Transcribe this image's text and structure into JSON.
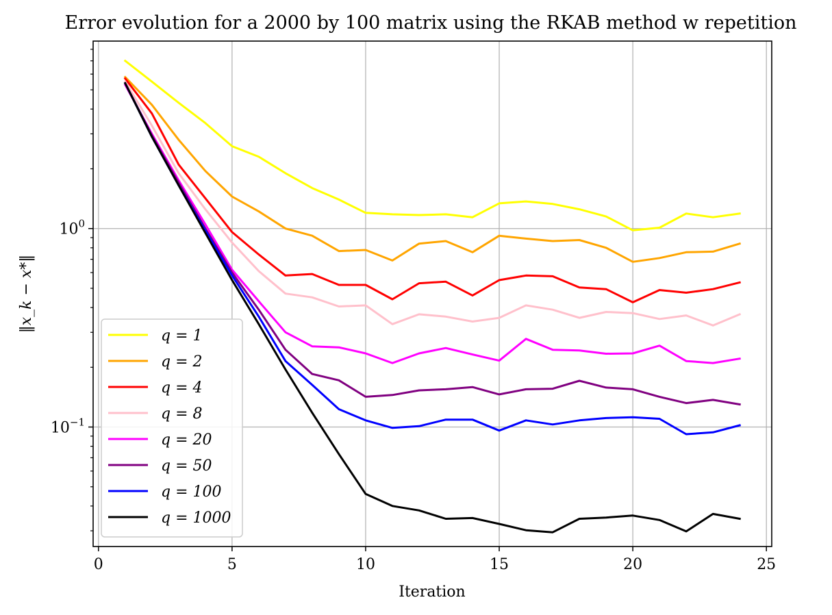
{
  "chart_data": {
    "type": "line",
    "title": "Error evolution for a 2000 by 100 matrix using the RKAB method w repetition",
    "xlabel": "Iteration",
    "ylabel": "‖x_k − x*‖",
    "xlim": [
      -0.2,
      25.2
    ],
    "ylim": [
      0.025,
      8.8
    ],
    "yscale": "log",
    "grid": true,
    "legend_position": "lower-left",
    "x_ticks": [
      0,
      5,
      10,
      15,
      20,
      25
    ],
    "x_tick_labels": [
      "0",
      "5",
      "10",
      "15",
      "20",
      "25"
    ],
    "y_major_ticks": [
      0.1,
      1
    ],
    "y_tick_labels": [
      {
        "base": "10",
        "exp": "−1"
      },
      {
        "base": "10",
        "exp": "0"
      }
    ],
    "x": [
      1,
      2,
      3,
      4,
      5,
      6,
      7,
      8,
      9,
      10,
      11,
      12,
      13,
      14,
      15,
      16,
      17,
      18,
      19,
      20,
      21,
      22,
      23,
      24
    ],
    "series": [
      {
        "name": "q = 1",
        "q": "1",
        "color": "#ffff00",
        "values": [
          7.0,
          5.5,
          4.3,
          3.4,
          2.6,
          2.3,
          1.9,
          1.6,
          1.4,
          1.2,
          1.18,
          1.17,
          1.18,
          1.14,
          1.34,
          1.37,
          1.33,
          1.25,
          1.15,
          0.98,
          1.01,
          1.19,
          1.14,
          1.19
        ]
      },
      {
        "name": "q = 2",
        "q": "2",
        "color": "#ffa500",
        "values": [
          5.8,
          4.2,
          2.8,
          1.95,
          1.45,
          1.22,
          1.0,
          0.92,
          0.77,
          0.78,
          0.69,
          0.84,
          0.865,
          0.76,
          0.92,
          0.89,
          0.865,
          0.875,
          0.8,
          0.68,
          0.71,
          0.76,
          0.765,
          0.84
        ]
      },
      {
        "name": "q = 4",
        "q": "4",
        "color": "#ff0000",
        "values": [
          5.7,
          3.8,
          2.1,
          1.42,
          0.96,
          0.74,
          0.58,
          0.59,
          0.52,
          0.52,
          0.44,
          0.53,
          0.54,
          0.46,
          0.55,
          0.58,
          0.575,
          0.505,
          0.495,
          0.425,
          0.49,
          0.475,
          0.495,
          0.535
        ]
      },
      {
        "name": "q = 8",
        "q": "8",
        "color": "#ffc0cb",
        "values": [
          5.5,
          3.3,
          1.9,
          1.25,
          0.85,
          0.61,
          0.47,
          0.45,
          0.405,
          0.41,
          0.33,
          0.37,
          0.36,
          0.34,
          0.355,
          0.41,
          0.39,
          0.355,
          0.38,
          0.375,
          0.35,
          0.365,
          0.325,
          0.37
        ]
      },
      {
        "name": "q = 20",
        "q": "20",
        "color": "#ff00ff",
        "values": [
          5.3,
          3.0,
          1.75,
          1.05,
          0.62,
          0.43,
          0.3,
          0.255,
          0.252,
          0.235,
          0.21,
          0.235,
          0.25,
          0.232,
          0.216,
          0.278,
          0.245,
          0.243,
          0.234,
          0.235,
          0.257,
          0.215,
          0.21,
          0.221
        ]
      },
      {
        "name": "q = 50",
        "q": "50",
        "color": "#800080",
        "values": [
          5.4,
          2.95,
          1.7,
          1.0,
          0.6,
          0.39,
          0.245,
          0.185,
          0.172,
          0.142,
          0.145,
          0.153,
          0.155,
          0.159,
          0.146,
          0.155,
          0.156,
          0.171,
          0.158,
          0.155,
          0.142,
          0.132,
          0.137,
          0.13
        ]
      },
      {
        "name": "q = 100",
        "q": "100",
        "color": "#0000ff",
        "values": [
          5.4,
          2.9,
          1.65,
          0.98,
          0.58,
          0.36,
          0.215,
          0.163,
          0.123,
          0.108,
          0.099,
          0.101,
          0.109,
          0.109,
          0.096,
          0.108,
          0.103,
          0.108,
          0.111,
          0.112,
          0.11,
          0.092,
          0.094,
          0.102
        ]
      },
      {
        "name": "q = 1000",
        "q": "1000",
        "color": "#000000",
        "values": [
          5.4,
          2.9,
          1.65,
          0.95,
          0.55,
          0.33,
          0.195,
          0.118,
          0.073,
          0.046,
          0.04,
          0.038,
          0.0345,
          0.0348,
          0.0325,
          0.0302,
          0.0295,
          0.0345,
          0.035,
          0.0358,
          0.034,
          0.0298,
          0.0365,
          0.0345
        ]
      }
    ]
  }
}
